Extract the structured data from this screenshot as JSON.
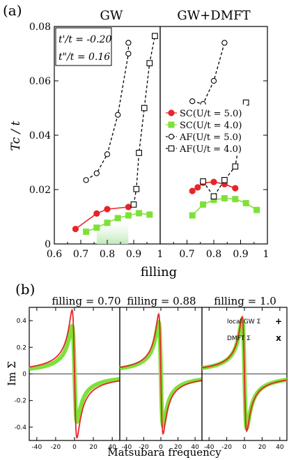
{
  "figure": {
    "panel_a_label": "(a)",
    "panel_b_label": "(b)"
  },
  "chart_data": [
    {
      "type": "scatter",
      "panel": "a-left",
      "title": "GW",
      "xlabel": "filling",
      "ylabel": "Tc / t",
      "xlim": [
        0.6,
        1.0
      ],
      "ylim": [
        0,
        0.08
      ],
      "xticks": [
        "0.6",
        "0.7",
        "0.8",
        "0.9",
        "1"
      ],
      "yticks": [
        "0",
        "0.02",
        "0.04",
        "0.06",
        "0.08"
      ],
      "annotations": [
        "t'/t = -0.20",
        "t\"/t = 0.16"
      ],
      "series": [
        {
          "key": "sc5",
          "color": "#e8242a",
          "marker": "circle",
          "line": "solid",
          "x": [
            0.68,
            0.76,
            0.8,
            0.88
          ],
          "y": [
            0.0055,
            0.0112,
            0.0128,
            0.0136
          ]
        },
        {
          "key": "sc4",
          "color": "#7ee13a",
          "marker": "square",
          "line": "solid",
          "x": [
            0.72,
            0.76,
            0.8,
            0.84,
            0.88,
            0.92,
            0.96
          ],
          "y": [
            0.0045,
            0.006,
            0.0078,
            0.0095,
            0.0105,
            0.0113,
            0.0108
          ]
        },
        {
          "key": "af5",
          "color": "#000000",
          "marker": "open-circle",
          "line": "dashed",
          "x": [
            0.72,
            0.76,
            0.8,
            0.84,
            0.88,
            0.88
          ],
          "y": [
            0.0235,
            0.026,
            0.033,
            0.0475,
            0.07,
            0.074
          ]
        },
        {
          "key": "af4",
          "color": "#000000",
          "marker": "open-square",
          "line": "dashed",
          "x": [
            0.9,
            0.91,
            0.92,
            0.94,
            0.96,
            0.98
          ],
          "y": [
            0.0145,
            0.0202,
            0.0335,
            0.05,
            0.0665,
            0.0765
          ]
        }
      ]
    },
    {
      "type": "scatter",
      "panel": "a-right",
      "title": "GW+DMFT",
      "xlabel": "filling",
      "xlim": [
        0.6,
        1.0
      ],
      "ylim": [
        0,
        0.08
      ],
      "xticks": [
        "0.7",
        "0.8",
        "0.9",
        "1"
      ],
      "legend": [
        {
          "key": "sc5",
          "label": "SC(U/t = 5.0)"
        },
        {
          "key": "sc4",
          "label": "SC(U/t = 4.0)"
        },
        {
          "key": "af5",
          "label": "AF(U/t = 5.0)"
        },
        {
          "key": "af4",
          "label": "AF(U/t = 4.0)"
        }
      ],
      "series": [
        {
          "key": "sc5",
          "color": "#e8242a",
          "marker": "circle",
          "line": "solid",
          "x": [
            0.72,
            0.74,
            0.76,
            0.8,
            0.84,
            0.88
          ],
          "y": [
            0.0195,
            0.0208,
            0.0225,
            0.0228,
            0.022,
            0.0205
          ]
        },
        {
          "key": "sc4",
          "color": "#7ee13a",
          "marker": "square",
          "line": "solid",
          "x": [
            0.72,
            0.76,
            0.8,
            0.84,
            0.88,
            0.92,
            0.96
          ],
          "y": [
            0.0105,
            0.0145,
            0.0162,
            0.0168,
            0.0165,
            0.015,
            0.0125
          ]
        },
        {
          "key": "af5",
          "color": "#000000",
          "marker": "open-circle",
          "line": "dashed",
          "x": [
            0.72,
            0.76,
            0.8,
            0.84
          ],
          "y": [
            0.0525,
            0.0515,
            0.06,
            0.074
          ]
        },
        {
          "key": "af4",
          "color": "#000000",
          "marker": "open-square",
          "line": "dashed",
          "x": [
            0.76,
            0.8,
            0.84,
            0.88,
            0.92
          ],
          "y": [
            0.023,
            0.0175,
            0.0235,
            0.0285,
            0.052
          ]
        }
      ]
    },
    {
      "type": "line",
      "panel": "b",
      "xlabel": "Matsubara frequency",
      "ylabel": "Im Σ",
      "xlim": [
        -48,
        48
      ],
      "ylim": [
        -0.5,
        0.5
      ],
      "xticks": [
        "-40",
        "-20",
        "0",
        "20",
        "40"
      ],
      "yticks": [
        "0.4",
        "0.2",
        "0",
        "-0.2",
        "-0.4"
      ],
      "legend": [
        {
          "key": "gw",
          "label": "local GW Σ",
          "marker": "+",
          "color": "#e8242a"
        },
        {
          "key": "dmft",
          "label": "DMFT Σ",
          "marker": "x",
          "color": "#7ee13a"
        }
      ],
      "subplots": [
        {
          "title": "filling = 0.70",
          "gw_peak": 0.48,
          "dmft_peak": 0.36
        },
        {
          "title": "filling = 0.88",
          "gw_peak": 0.45,
          "dmft_peak": 0.39
        },
        {
          "title": "filling = 1.0",
          "gw_peak": 0.43,
          "dmft_peak": 0.41
        }
      ]
    }
  ]
}
